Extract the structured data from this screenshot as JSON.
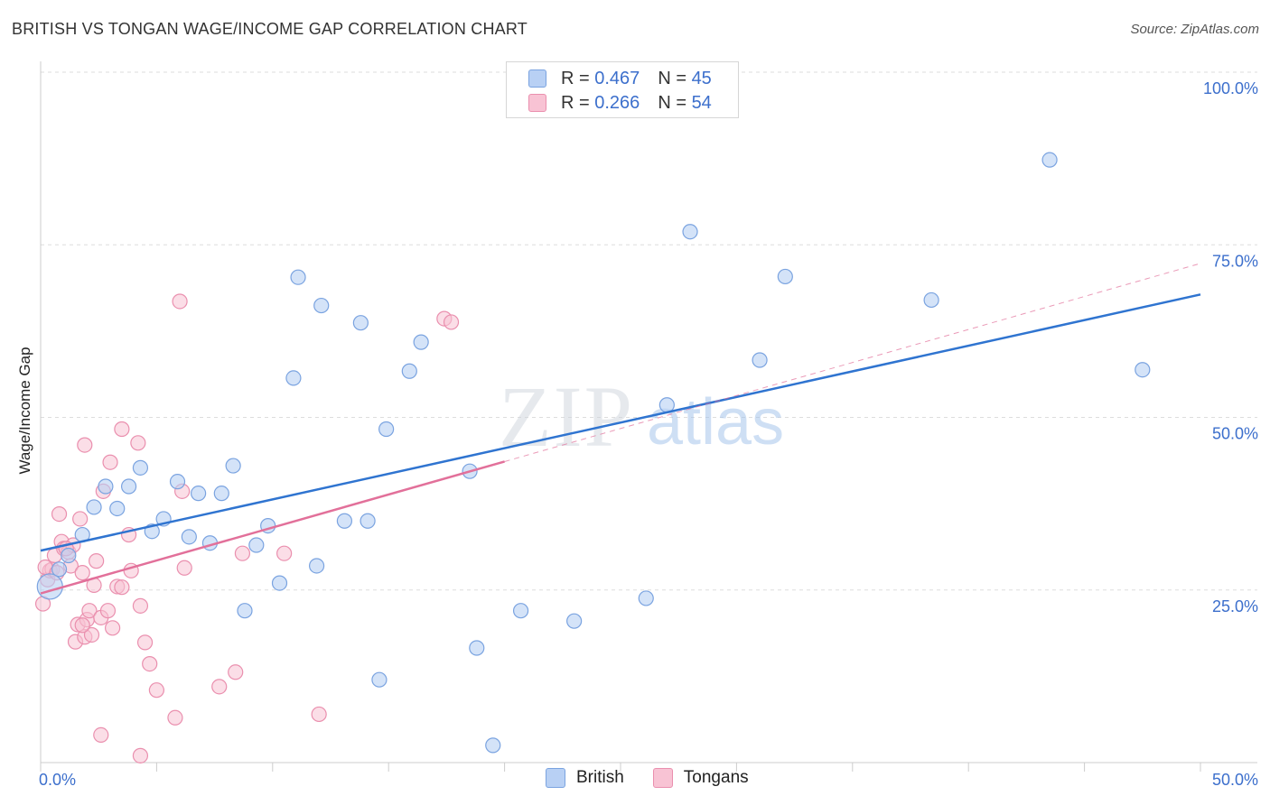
{
  "title": "BRITISH VS TONGAN WAGE/INCOME GAP CORRELATION CHART",
  "source": "Source: ZipAtlas.com",
  "watermark": {
    "zip": "ZIP",
    "atlas": "atlas"
  },
  "legend": {
    "rows": [
      {
        "r_label": "R =",
        "r_value": "0.467",
        "n_label": "N =",
        "n_value": "45"
      },
      {
        "r_label": "R =",
        "r_value": "0.266",
        "n_label": "N =",
        "n_value": "54"
      }
    ]
  },
  "colors": {
    "british_fill": "#b8d0f4",
    "british_stroke": "#7aa3e0",
    "british_line": "#2f74d0",
    "tongan_fill": "#f8c3d4",
    "tongan_stroke": "#ea8fae",
    "tongan_line": "#e2709a",
    "tick_label": "#3c6fcc",
    "grid": "#dddddd"
  },
  "chart_data": {
    "type": "scatter",
    "title": "BRITISH VS TONGAN WAGE/INCOME GAP CORRELATION CHART",
    "xlabel": "",
    "ylabel": "Wage/Income Gap",
    "xlim": [
      0,
      50
    ],
    "ylim": [
      0,
      100
    ],
    "x_ticks": [
      "0.0%",
      "50.0%"
    ],
    "y_ticks": [
      "25.0%",
      "50.0%",
      "75.0%",
      "100.0%"
    ],
    "grid": true,
    "legend_placement": "top-center",
    "series": [
      {
        "name": "British",
        "r": 0.467,
        "n": 45,
        "trend": {
          "x0": 0,
          "y0": 30.7,
          "x1": 50,
          "y1": 67.8
        },
        "points": [
          [
            0.4,
            25.5
          ],
          [
            0.8,
            28
          ],
          [
            1.2,
            30
          ],
          [
            1.8,
            33
          ],
          [
            2.3,
            37
          ],
          [
            2.8,
            40
          ],
          [
            3.3,
            36.8
          ],
          [
            3.8,
            40
          ],
          [
            4.3,
            42.7
          ],
          [
            4.8,
            33.5
          ],
          [
            5.3,
            35.3
          ],
          [
            5.9,
            40.7
          ],
          [
            6.4,
            32.7
          ],
          [
            6.8,
            39
          ],
          [
            7.3,
            31.8
          ],
          [
            7.8,
            39
          ],
          [
            8.3,
            43
          ],
          [
            8.8,
            22
          ],
          [
            9.3,
            31.5
          ],
          [
            9.8,
            34.3
          ],
          [
            10.3,
            26
          ],
          [
            10.9,
            55.7
          ],
          [
            11.1,
            70.3
          ],
          [
            11.9,
            28.5
          ],
          [
            12.1,
            66.2
          ],
          [
            13.1,
            35
          ],
          [
            13.8,
            63.7
          ],
          [
            14.1,
            35
          ],
          [
            14.6,
            12
          ],
          [
            14.9,
            48.3
          ],
          [
            15.9,
            56.7
          ],
          [
            16.4,
            60.9
          ],
          [
            18.5,
            42.2
          ],
          [
            18.8,
            16.6
          ],
          [
            19.5,
            2.5
          ],
          [
            20.7,
            22
          ],
          [
            23.0,
            20.5
          ],
          [
            26.1,
            23.8
          ],
          [
            27.0,
            51.8
          ],
          [
            28.0,
            76.9
          ],
          [
            31.0,
            58.3
          ],
          [
            32.1,
            70.4
          ],
          [
            38.4,
            67
          ],
          [
            43.5,
            87.3
          ],
          [
            47.5,
            56.9
          ]
        ]
      },
      {
        "name": "Tongans",
        "r": 0.266,
        "n": 54,
        "trend": {
          "x0": 0,
          "y0": 24.5,
          "x1": 20,
          "y1": 43.6
        },
        "trend_extension": {
          "x0": 20,
          "y0": 43.6,
          "x1": 50,
          "y1": 72.3
        },
        "points": [
          [
            0.1,
            23
          ],
          [
            0.3,
            26.5
          ],
          [
            0.4,
            27.8
          ],
          [
            0.5,
            28
          ],
          [
            0.6,
            30
          ],
          [
            0.8,
            36
          ],
          [
            0.9,
            32
          ],
          [
            1.0,
            31
          ],
          [
            1.2,
            30.5
          ],
          [
            1.3,
            28.5
          ],
          [
            1.4,
            31.5
          ],
          [
            1.5,
            17.5
          ],
          [
            1.6,
            20
          ],
          [
            1.7,
            35.3
          ],
          [
            1.8,
            27.5
          ],
          [
            1.9,
            46
          ],
          [
            1.9,
            18.2
          ],
          [
            2.0,
            20.7
          ],
          [
            2.1,
            22
          ],
          [
            2.2,
            18.5
          ],
          [
            2.3,
            25.7
          ],
          [
            2.4,
            29.2
          ],
          [
            2.6,
            21
          ],
          [
            2.7,
            39.3
          ],
          [
            2.9,
            22
          ],
          [
            3.0,
            43.5
          ],
          [
            3.1,
            19.5
          ],
          [
            3.3,
            25.5
          ],
          [
            3.5,
            48.3
          ],
          [
            3.8,
            33
          ],
          [
            3.9,
            27.8
          ],
          [
            4.2,
            46.3
          ],
          [
            4.3,
            22.7
          ],
          [
            4.5,
            17.4
          ],
          [
            4.7,
            14.3
          ],
          [
            5.0,
            10.5
          ],
          [
            5.8,
            6.5
          ],
          [
            6.0,
            66.8
          ],
          [
            6.1,
            39.3
          ],
          [
            6.2,
            28.2
          ],
          [
            7.7,
            11
          ],
          [
            8.4,
            13.1
          ],
          [
            8.7,
            30.3
          ],
          [
            10.5,
            30.3
          ],
          [
            12.0,
            7
          ],
          [
            17.4,
            64.3
          ],
          [
            17.7,
            63.8
          ],
          [
            2.6,
            4
          ],
          [
            4.3,
            1
          ],
          [
            0.2,
            28.3
          ],
          [
            0.7,
            27.5
          ],
          [
            1.1,
            31
          ],
          [
            1.8,
            19.9
          ],
          [
            3.5,
            25.4
          ]
        ]
      }
    ]
  },
  "bottom_legend": {
    "british": "British",
    "tongans": "Tongans"
  }
}
